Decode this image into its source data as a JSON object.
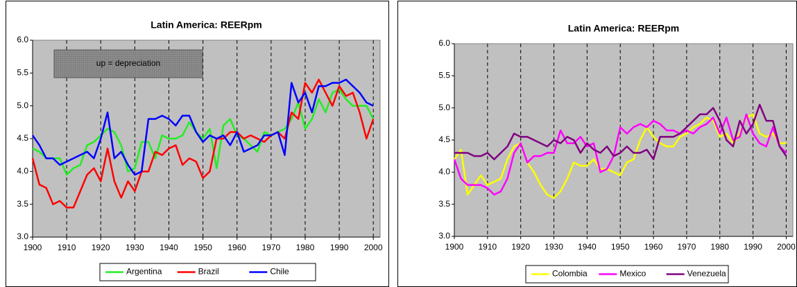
{
  "chart_data": [
    {
      "type": "line",
      "title": "Latin America: REERpm",
      "annotation": "up = depreciation",
      "x": [
        1900,
        1902,
        1904,
        1906,
        1908,
        1910,
        1912,
        1914,
        1916,
        1918,
        1920,
        1922,
        1924,
        1926,
        1928,
        1930,
        1932,
        1934,
        1936,
        1938,
        1940,
        1942,
        1944,
        1946,
        1948,
        1950,
        1952,
        1954,
        1956,
        1958,
        1960,
        1962,
        1964,
        1966,
        1968,
        1970,
        1972,
        1974,
        1976,
        1978,
        1980,
        1982,
        1984,
        1986,
        1988,
        1990,
        1992,
        1994,
        1996,
        1998,
        2000
      ],
      "series": [
        {
          "name": "Argentina",
          "color": "#22ee22",
          "values": [
            4.35,
            4.3,
            4.2,
            4.2,
            4.2,
            3.95,
            4.05,
            4.1,
            4.4,
            4.45,
            4.55,
            4.65,
            4.6,
            4.4,
            4.0,
            4.05,
            4.45,
            4.45,
            4.2,
            4.55,
            4.5,
            4.5,
            4.55,
            4.75,
            4.6,
            4.5,
            4.65,
            4.05,
            4.7,
            4.8,
            4.55,
            4.5,
            4.4,
            4.3,
            4.6,
            4.55,
            4.6,
            4.65,
            4.8,
            5.05,
            4.65,
            4.8,
            5.1,
            4.9,
            5.2,
            5.25,
            5.1,
            5.0,
            5.0,
            5.0,
            4.8
          ]
        },
        {
          "name": "Brazil",
          "color": "#ff0000",
          "values": [
            4.2,
            3.8,
            3.75,
            3.5,
            3.55,
            3.45,
            3.45,
            3.7,
            3.95,
            4.05,
            3.85,
            4.35,
            3.85,
            3.6,
            3.85,
            3.7,
            4.0,
            4.0,
            4.3,
            4.25,
            4.35,
            4.4,
            4.1,
            4.2,
            4.15,
            3.9,
            4.0,
            4.5,
            4.5,
            4.6,
            4.6,
            4.5,
            4.55,
            4.5,
            4.45,
            4.55,
            4.6,
            4.5,
            4.9,
            4.8,
            5.35,
            5.2,
            5.4,
            5.2,
            5.0,
            5.3,
            5.15,
            5.2,
            4.9,
            4.5,
            4.8
          ]
        },
        {
          "name": "Chile",
          "color": "#0000ff",
          "values": [
            4.55,
            4.4,
            4.2,
            4.2,
            4.1,
            4.15,
            4.2,
            4.25,
            4.3,
            4.2,
            4.5,
            4.9,
            4.2,
            4.3,
            4.1,
            3.95,
            4.0,
            4.8,
            4.8,
            4.85,
            4.8,
            4.7,
            4.85,
            4.85,
            4.6,
            4.45,
            4.55,
            4.5,
            4.55,
            4.4,
            4.6,
            4.3,
            4.35,
            4.4,
            4.55,
            4.55,
            4.6,
            4.25,
            5.35,
            5.05,
            5.2,
            4.9,
            5.3,
            5.3,
            5.35,
            5.35,
            5.4,
            5.3,
            5.2,
            5.05,
            5.0
          ]
        }
      ],
      "xlim": [
        1900,
        2002
      ],
      "xticks": [
        1900,
        1910,
        1920,
        1930,
        1940,
        1950,
        1960,
        1970,
        1980,
        1990,
        2000
      ],
      "ylim": [
        3,
        6
      ],
      "yticks": [
        {
          "value": 3,
          "label": "3.0"
        },
        3.5,
        {
          "value": 4,
          "label": "4.0"
        },
        4.5,
        {
          "value": 5,
          "label": "5.0"
        },
        5.5,
        {
          "value": 6,
          "label": "6.0"
        }
      ],
      "grid": true,
      "legend": "bottom"
    },
    {
      "type": "line",
      "title": "Latin America: REERpm",
      "x": [
        1900,
        1902,
        1904,
        1906,
        1908,
        1910,
        1912,
        1914,
        1916,
        1918,
        1920,
        1922,
        1924,
        1926,
        1928,
        1930,
        1932,
        1934,
        1936,
        1938,
        1940,
        1942,
        1944,
        1946,
        1948,
        1950,
        1952,
        1954,
        1956,
        1958,
        1960,
        1962,
        1964,
        1966,
        1968,
        1970,
        1972,
        1974,
        1976,
        1978,
        1980,
        1982,
        1984,
        1986,
        1988,
        1990,
        1992,
        1994,
        1996,
        1998,
        2000
      ],
      "series": [
        {
          "name": "Colombia",
          "color": "#ffff00",
          "values": [
            4.2,
            4.35,
            3.65,
            3.8,
            3.95,
            3.8,
            3.85,
            3.9,
            4.2,
            4.4,
            4.45,
            4.15,
            4.0,
            3.8,
            3.65,
            3.6,
            3.7,
            3.9,
            4.15,
            4.1,
            4.1,
            4.2,
            4.05,
            4.05,
            4.0,
            3.95,
            4.15,
            4.2,
            4.5,
            4.7,
            4.55,
            4.45,
            4.4,
            4.4,
            4.55,
            4.6,
            4.7,
            4.75,
            4.85,
            4.8,
            4.55,
            4.6,
            4.45,
            4.6,
            4.85,
            4.9,
            4.6,
            4.55,
            4.6,
            4.45,
            4.45
          ]
        },
        {
          "name": "Mexico",
          "color": "#ff00ff",
          "values": [
            4.2,
            3.9,
            3.8,
            3.8,
            3.8,
            3.75,
            3.65,
            3.7,
            3.9,
            4.3,
            4.45,
            4.15,
            4.25,
            4.25,
            4.3,
            4.3,
            4.65,
            4.45,
            4.45,
            4.55,
            4.4,
            4.45,
            4.0,
            4.05,
            4.25,
            4.7,
            4.6,
            4.7,
            4.75,
            4.7,
            4.8,
            4.75,
            4.65,
            4.65,
            4.6,
            4.65,
            4.6,
            4.7,
            4.75,
            4.85,
            4.6,
            4.85,
            4.5,
            4.55,
            4.9,
            4.6,
            4.45,
            4.4,
            4.7,
            4.4,
            4.3
          ]
        },
        {
          "name": "Venezuela",
          "color": "#800080",
          "values": [
            4.3,
            4.3,
            4.3,
            4.25,
            4.25,
            4.3,
            4.2,
            4.3,
            4.4,
            4.6,
            4.55,
            4.55,
            4.5,
            4.45,
            4.4,
            4.5,
            4.45,
            4.55,
            4.5,
            4.3,
            4.45,
            4.35,
            4.3,
            4.4,
            4.25,
            4.3,
            4.4,
            4.3,
            4.3,
            4.35,
            4.2,
            4.55,
            4.55,
            4.55,
            4.6,
            4.7,
            4.8,
            4.9,
            4.9,
            5.0,
            4.8,
            4.5,
            4.4,
            4.8,
            4.6,
            4.75,
            5.05,
            4.8,
            4.8,
            4.4,
            4.25
          ]
        }
      ],
      "xlim": [
        1900,
        2002
      ],
      "xticks": [
        1900,
        1910,
        1920,
        1930,
        1940,
        1950,
        1960,
        1970,
        1980,
        1990,
        2000
      ],
      "ylim": [
        3,
        6
      ],
      "yticks": [
        {
          "value": 3,
          "label": "3.0"
        },
        3.5,
        {
          "value": 4,
          "label": "4.0"
        },
        4.5,
        {
          "value": 5,
          "label": "5.0"
        },
        5.5,
        {
          "value": 6,
          "label": "6.0"
        }
      ],
      "grid": true,
      "legend": "bottom"
    }
  ]
}
